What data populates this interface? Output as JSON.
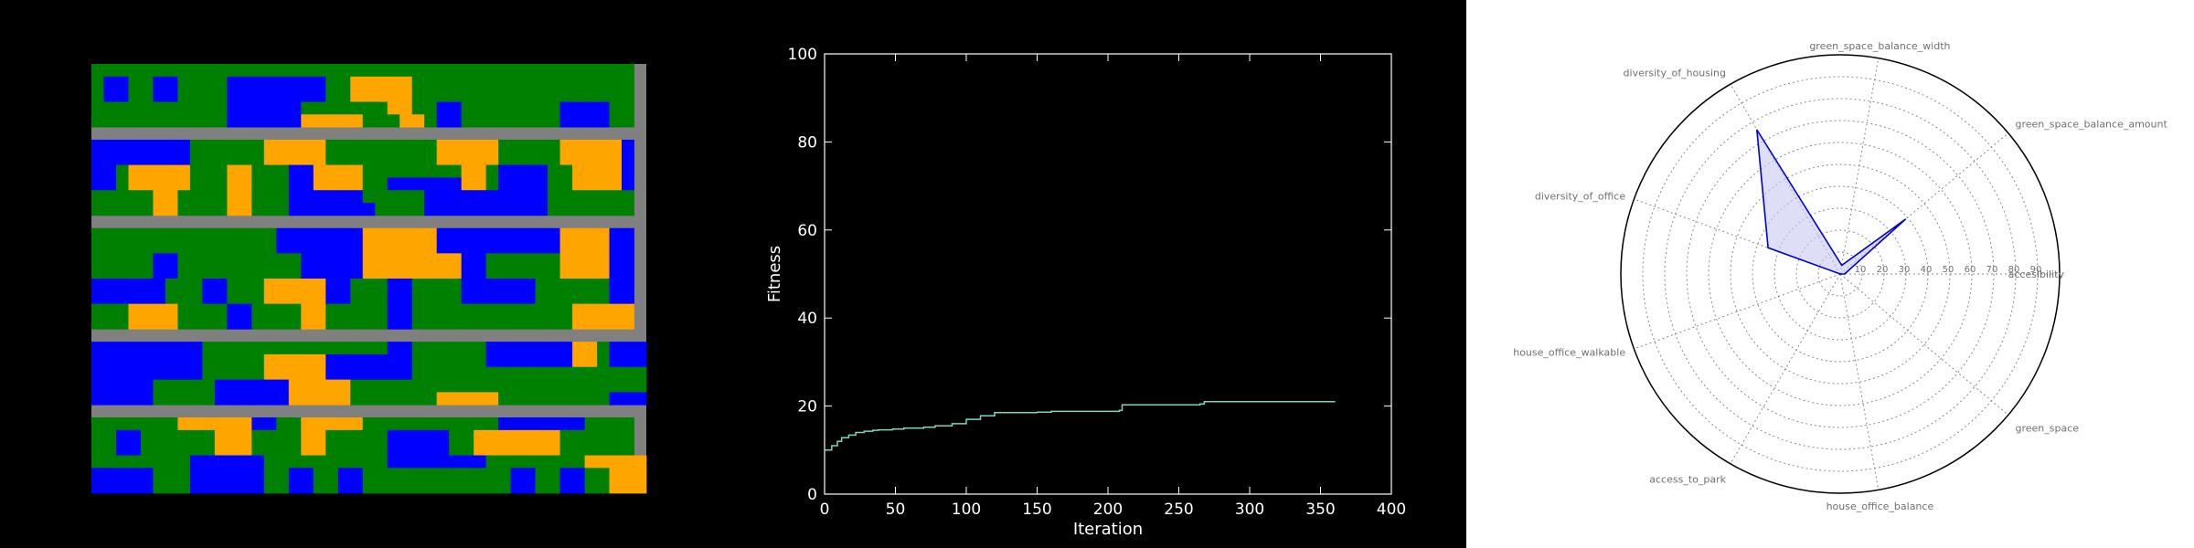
{
  "chart_data": [
    {
      "type": "heatmap",
      "title": "",
      "description_colors": {
        "road": "#808080",
        "green": "#008000",
        "blue": "#0000ff",
        "orange": "#ffa500"
      },
      "rows": 34,
      "cols": 44,
      "grid": [
        "GGGGGGGGGGGGGGGGGGGGGGGGGGGGGGGGGGGGGGGGGGGG",
        "GBBGGBBGGGGBBBBBBBBGGOOOOOGGGGGGGGGGGGGGGGGG",
        "GBBGGBBGGGGBBBBBBBBGGOOOOOGGGGGGGGGGGGGGGGGG",
        "GGGGGGGGGGGBBBBBBGGGGGGGOOGGBBGGGGGGGGBBBBGG",
        "GGGGGGGGGGGBBBBBBOOOOOGGGOOGBBGGGGGGGGBBBBGG",
        "RRRRRRRRRRRRRRRRRRRRRRRRRRRRRRRRRRRRRRRRRRRR",
        "BBBBBBBBGGGGGGOOOOOGGGGGGGGGOOOOOGGGGGOOOOOB",
        "BBBBBBBBGGGGGGOOOOOGGGGGGGGGOOOOOGGGGGOOOOOB",
        "BBGOOOOOGGGOOGGGBBOOOOGGGGGGGGOOGBBBBGGOOOOB",
        "BBGOOOOOGGGOOGGGBBOOOOGGBBBBBBOOGBBBBGGOOOOB",
        "GGGGGOOGGGGOOGGGBBBBBBGGGGGBBBBBBBBBBGGGGGGG",
        "GGGGGOOGGGGOOGGGBBBBBBBGGGGBBBBBBBBBBGGGGGGG",
        "RRRRRRRRRRRRRRRRRRRRRRRRRRRRRRRRRRRRRRRRRRRR",
        "GGGGGGGGGGGGGGGBBBBBBBOOOOOOBBBBBBBBBBOOOOBB",
        "GGGGGGGGGGGGGGGBBBBBBBOOOOOOBBBBBBBBBBOOOOBB",
        "GGGGGBBGGGGGGGGGGBBBBBOOOOOOOOBBGGGGGGOOOOBB",
        "GGGGGBBGGGGGGGGGGBBBBBOOOOOOOOBBGGGGGGOOOOBB",
        "BBBBBBGGGBBGGGOOOOOBBGGGBBGGGGBBBBBBGGGGGGBB",
        "BBBBBBGGGBBGGGOOOOOBBGGGBBGGGGBBBBBBGGGGGGBB",
        "GGGOOOOGGGGBBGGGGOOGGGGGBBGGGGGGGGGGGGGOOOOO",
        "GGGOOOOGGGGBBGGGGOOGGGGGBBGGGGGGGGGGGGGOOOOO",
        "RRRRRRRRRRRRRRRRRRRRRRRRRRRRRRRRRRRRRRRRRRRR",
        "BBBBBBBBBGGGGGGGGGGGGGGGBBGGGGGGBBBBBBBOOGBBB",
        "BBBBBBBBBGGGGGOOOOOBBBBBBBGGGGGGBBBBBBBOOGBBB",
        "BBBBBBBBBGGGGGOOOOOBBBBBBBGGGGGGGGGGGGGGGGGGG",
        "BBBBBGGGGGBBBBBBOOOOOGGGGGGGGGGGGGGGGGGGGGGGG",
        "BBBBBGGGGGBBBBBBOOOOOGGGGGGGOOOOOGGGGGGGGGBBB",
        "RRRRRRRRRRRRRRRRRRRRRRRRRRRRRRRRRRRRRRRRRRRR",
        "GGGGGGGOOOOOOBBGGOOOOOGGGGGGGGGGGBBBBBBBGGGG",
        "GGBBGGGGGGOOOGGGGOOGGGGGBBBBBGGOOOOOOOGGGGGG",
        "GGBBGGGGGGOOOGGGGOOGGGGGBBBBBGGOOOOOOOGGGGGG",
        "GGGGGGGGBBBBBBGGGGGGGGGGBBBBBBBBGGGGGGGGOOOOO",
        "BBBBBGGGBBBBBBGGBBGGBBGGGGGGGGGGGGBBGGBBGGOOO",
        "BBBBBGGGBBBBBBGGBBGGBBGGGGGGGGGGGGBBGGBBGGOOO"
      ]
    },
    {
      "type": "line",
      "title": "",
      "xlabel": "Iteration",
      "ylabel": "Fitness",
      "xlim": [
        0,
        400
      ],
      "ylim": [
        0,
        100
      ],
      "xticks": [
        "0",
        "50",
        "100",
        "150",
        "200",
        "250",
        "300",
        "350",
        "400"
      ],
      "yticks": [
        "0",
        "20",
        "40",
        "60",
        "80",
        "100"
      ],
      "line_color": "#7fd4c1",
      "series": [
        {
          "x": [
            0,
            5,
            9,
            12,
            17,
            22,
            28,
            34,
            38,
            48,
            56,
            70,
            78,
            90,
            100,
            110,
            120,
            150,
            160,
            208,
            210,
            265,
            268,
            360
          ],
          "y": [
            10.0,
            11.0,
            12.0,
            12.8,
            13.4,
            14.0,
            14.3,
            14.5,
            14.6,
            14.8,
            15.0,
            15.2,
            15.5,
            16.0,
            17.0,
            17.8,
            18.5,
            18.6,
            18.8,
            19.0,
            20.3,
            20.5,
            21.0,
            21.1
          ]
        }
      ]
    },
    {
      "type": "radar",
      "title": "",
      "rmax": 100,
      "rticks": [
        "10",
        "20",
        "30",
        "40",
        "50",
        "60",
        "70",
        "80",
        "90"
      ],
      "axes": [
        "accesibility",
        "green_space_balance_amount",
        "green_space_balance_width",
        "diversity_of_housing",
        "diversity_of_office",
        "house_office_walkable",
        "access_to_park",
        "house_office_balance",
        "green_space"
      ],
      "values": [
        2,
        39,
        4,
        76,
        35,
        0,
        0,
        0,
        0
      ],
      "line_color": "#0000cc",
      "fill_color": "#c8c8f0"
    }
  ]
}
